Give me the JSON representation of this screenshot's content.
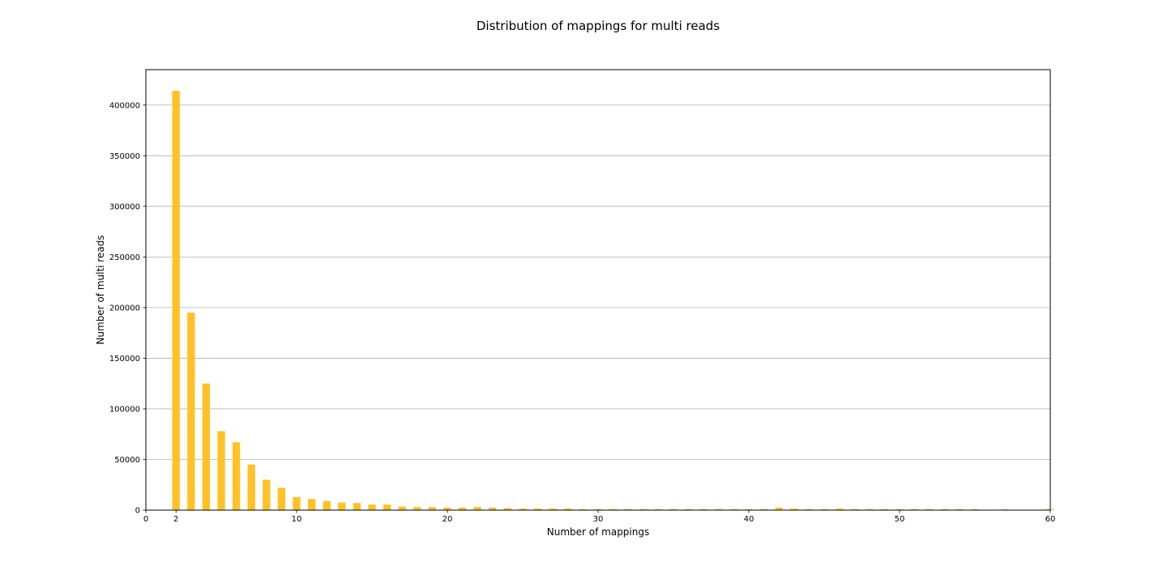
{
  "chart_data": {
    "type": "bar",
    "title": "Distribution of mappings for multi reads",
    "xlabel": "Number of mappings",
    "ylabel": "Number of multi reads",
    "xlim": [
      0,
      60
    ],
    "ylim": [
      0,
      435000
    ],
    "xticks": [
      0,
      2,
      10,
      20,
      30,
      40,
      50,
      60
    ],
    "yticks": [
      0,
      50000,
      100000,
      150000,
      200000,
      250000,
      300000,
      350000,
      400000
    ],
    "grid": "y",
    "bar_color": "#FFC125",
    "x": [
      2,
      3,
      4,
      5,
      6,
      7,
      8,
      9,
      10,
      11,
      12,
      13,
      14,
      15,
      16,
      17,
      18,
      19,
      20,
      21,
      22,
      23,
      24,
      25,
      26,
      27,
      28,
      29,
      30,
      31,
      32,
      33,
      34,
      35,
      36,
      37,
      38,
      39,
      40,
      41,
      42,
      43,
      44,
      45,
      46,
      47,
      48,
      49,
      50,
      51,
      52,
      53,
      54,
      55,
      56,
      57,
      58,
      59,
      60
    ],
    "values": [
      414000,
      195000,
      125000,
      78000,
      67000,
      45000,
      30000,
      22000,
      13000,
      11000,
      9000,
      7500,
      7000,
      5500,
      5500,
      3500,
      3000,
      3000,
      2500,
      2500,
      3000,
      2500,
      2000,
      1500,
      1500,
      1500,
      1500,
      1000,
      1000,
      1000,
      1000,
      1000,
      1000,
      1000,
      1000,
      1000,
      1000,
      1000,
      1000,
      1000,
      2500,
      1500,
      1000,
      1000,
      1500,
      1000,
      1000,
      1000,
      1000,
      1000,
      1000,
      1000,
      1000,
      1000,
      0,
      800,
      0,
      0,
      1000
    ]
  }
}
